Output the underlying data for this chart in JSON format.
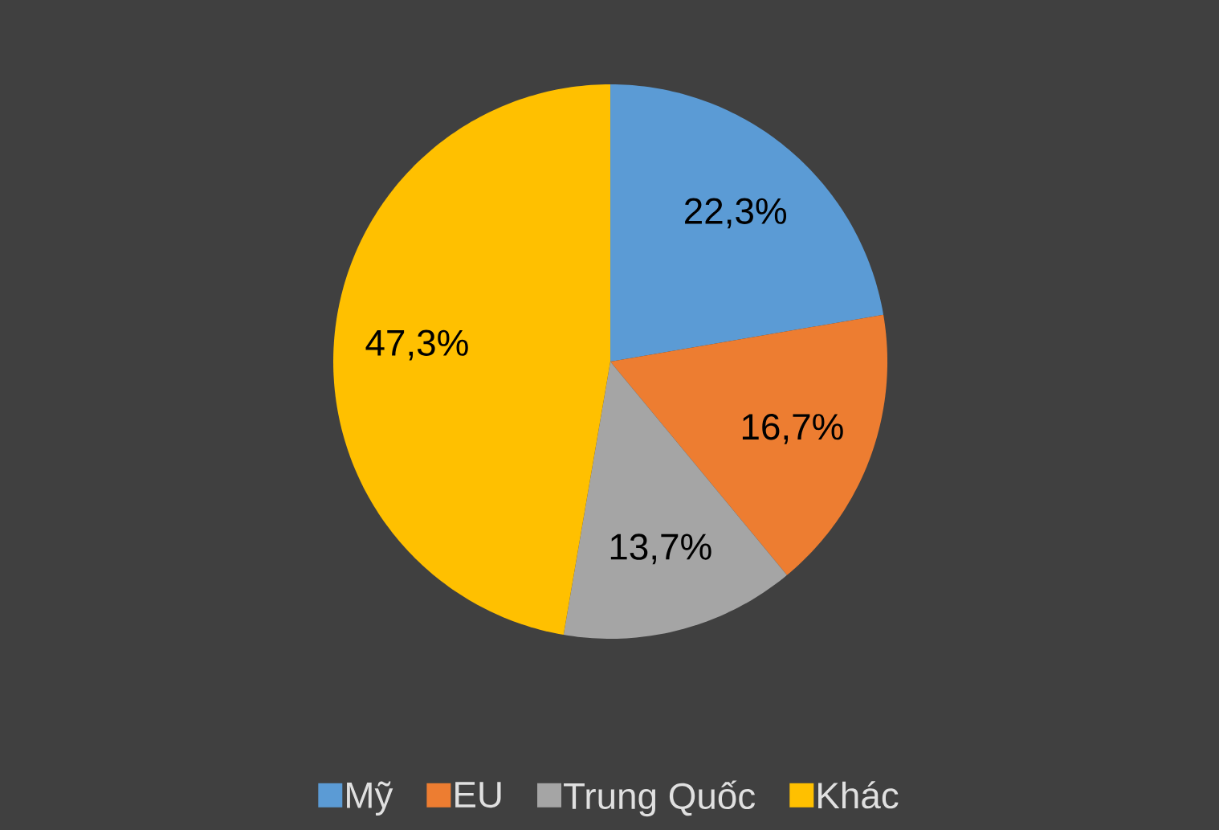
{
  "chart_data": {
    "type": "pie",
    "categories": [
      "Mỹ",
      "EU",
      "Trung Quốc",
      "Khác"
    ],
    "values": [
      22.3,
      16.7,
      13.7,
      47.3
    ],
    "value_labels": [
      "22,3%",
      "16,7%",
      "13,7%",
      "47,3%"
    ],
    "colors": [
      "#5b9bd5",
      "#ed7d31",
      "#a5a5a5",
      "#ffc000"
    ],
    "legend": "bottom"
  }
}
